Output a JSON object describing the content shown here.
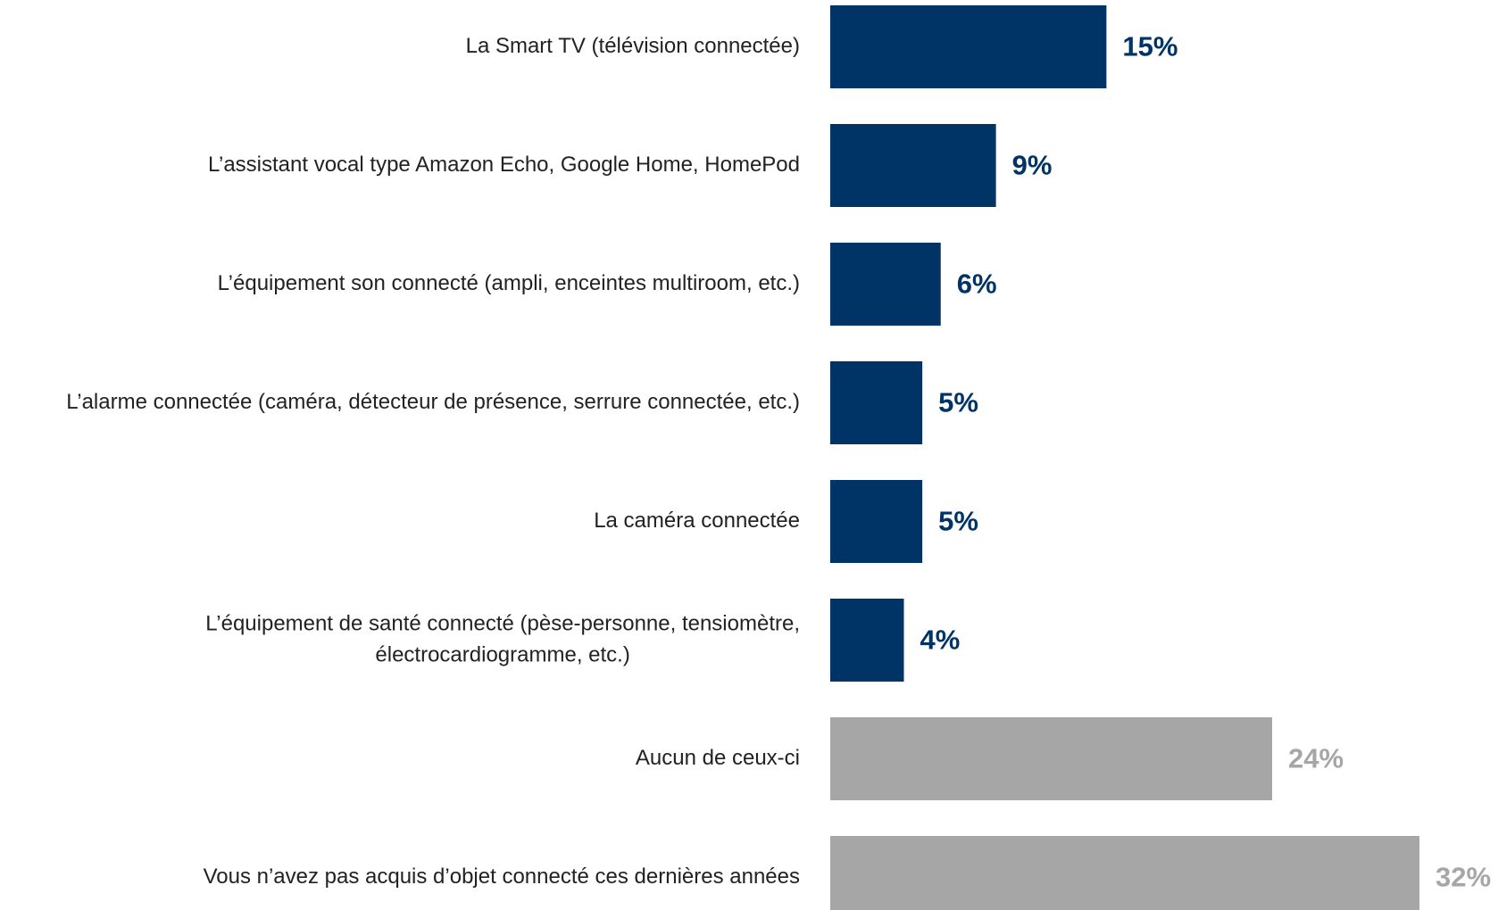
{
  "chart_data": {
    "type": "bar",
    "orientation": "horizontal",
    "categories": [
      [
        "La Smart TV (télévision connectée)"
      ],
      [
        "L’assistant vocal type Amazon Echo, Google Home, HomePod"
      ],
      [
        "L’équipement son connecté (ampli, enceintes multiroom, etc.)"
      ],
      [
        "L’alarme connectée (caméra, détecteur de présence, serrure connectée, etc.)"
      ],
      [
        "La caméra connectée"
      ],
      [
        "L’équipement de santé connecté (pèse-personne, tensiomètre,",
        "électrocardiogramme, etc.)"
      ],
      [
        "Aucun de ceux-ci"
      ],
      [
        "Vous n’avez pas acquis d’objet connecté ces dernières années"
      ]
    ],
    "values": [
      15,
      9,
      6,
      5,
      5,
      4,
      24,
      32
    ],
    "value_labels": [
      "15%",
      "9%",
      "6%",
      "5%",
      "5%",
      "4%",
      "24%",
      "32%"
    ],
    "bar_colors": [
      "#003366",
      "#003366",
      "#003366",
      "#003366",
      "#003366",
      "#003366",
      "#a6a6a6",
      "#a6a6a6"
    ],
    "value_label_colors": [
      "#003366",
      "#003366",
      "#003366",
      "#003366",
      "#003366",
      "#003366",
      "#a6a6a6",
      "#a6a6a6"
    ],
    "xlim": [
      0,
      32
    ],
    "grid": false,
    "legend": "none"
  }
}
